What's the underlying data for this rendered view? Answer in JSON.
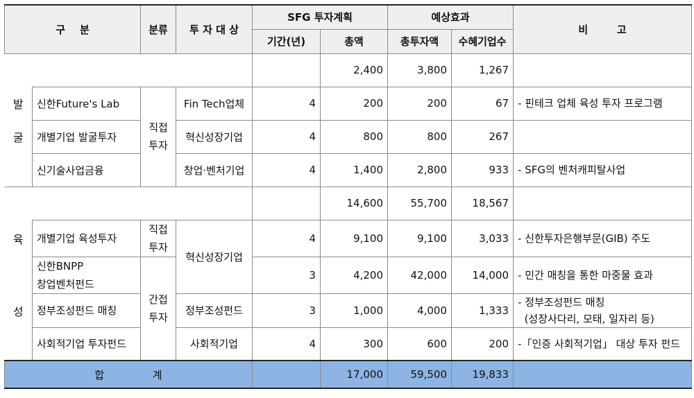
{
  "header": {
    "gubun": "구    분",
    "category": "분류",
    "target": "투 자 대 상",
    "sfg_plan": "SFG 투자계획",
    "expected": "예상효과",
    "remark": "비        고",
    "period": "기간(년)",
    "total_amount": "총액",
    "total_investment": "총투자액",
    "beneficiaries": "수혜기업수"
  },
  "discovery": {
    "side_1": "발",
    "side_2": "굴",
    "subtotal": {
      "amount": "2,400",
      "investment": "3,800",
      "beneficiaries": "1,267"
    },
    "category_label": "직접\n투자",
    "rows": [
      {
        "name": "신한Future's Lab",
        "target": "Fin Tech업체",
        "period": "4",
        "amount": "200",
        "investment": "200",
        "beneficiaries": "67",
        "remark": "- 핀테크 업체 육성 투자 프로그램"
      },
      {
        "name": "개별기업 발굴투자",
        "target": "혁신성장기업",
        "period": "4",
        "amount": "800",
        "investment": "800",
        "beneficiaries": "267",
        "remark": ""
      },
      {
        "name": "신기술사업금융",
        "target": "창업·벤처기업",
        "period": "4",
        "amount": "1,400",
        "investment": "2,800",
        "beneficiaries": "933",
        "remark": "- SFG의 벤처캐피탈사업"
      }
    ]
  },
  "growth": {
    "side_1": "육",
    "side_2": "성",
    "subtotal": {
      "amount": "14,600",
      "investment": "55,700",
      "beneficiaries": "18,567"
    },
    "direct_label": "직접\n투자",
    "indirect_label": "간접\n투자",
    "rows": [
      {
        "name": "개별기업 육성투자",
        "target": "혁신성장기업",
        "period": "4",
        "amount": "9,100",
        "investment": "9,100",
        "beneficiaries": "3,033",
        "remark": "- 신한투자은행부문(GIB) 주도"
      },
      {
        "name": "신한BNPP\n창업벤처펀드",
        "target": "",
        "period": "3",
        "amount": "4,200",
        "investment": "42,000",
        "beneficiaries": "14,000",
        "remark": "- 민간 매칭을 통한 마중물 효과"
      },
      {
        "name": "정부조성펀드 매칭",
        "target": "정부조성펀드",
        "period": "3",
        "amount": "1,000",
        "investment": "4,000",
        "beneficiaries": "1,333",
        "remark": "- 정부조성펀드 매칭\n  (성장사다리, 모태, 일자리 등)"
      },
      {
        "name": "사회적기업 투자펀드",
        "target": "사회적기업",
        "period": "4",
        "amount": "300",
        "investment": "600",
        "beneficiaries": "200",
        "remark": "-「인증 사회적기업」 대상 투자 펀드"
      }
    ]
  },
  "total": {
    "label_1": "합",
    "label_2": "계",
    "amount": "17,000",
    "investment": "59,500",
    "beneficiaries": "19,833"
  }
}
